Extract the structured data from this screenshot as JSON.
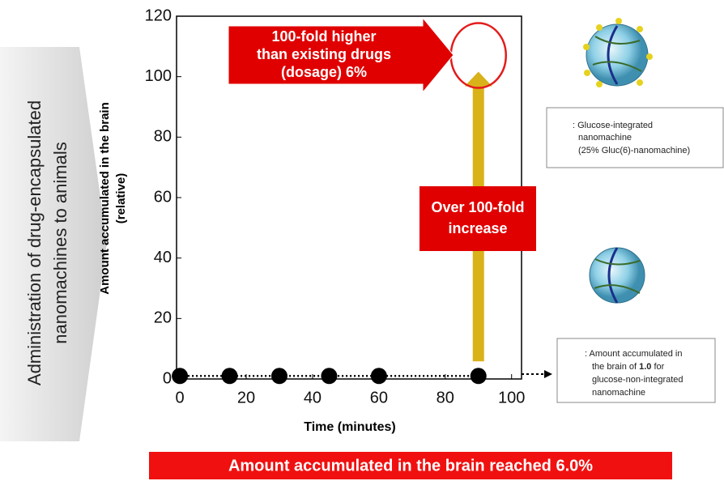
{
  "chart_data": {
    "type": "scatter",
    "xlabel": "Time (minutes)",
    "ylabel": [
      "Amount accumulated in the brain",
      "(relative)"
    ],
    "xlim": [
      -1,
      103
    ],
    "ylim": [
      0,
      120
    ],
    "xticks": [
      0,
      20,
      40,
      60,
      80,
      100
    ],
    "yticks": [
      0,
      20,
      40,
      60,
      80,
      100,
      120
    ],
    "series": [
      {
        "color": "#000000",
        "x": [
          0,
          15,
          30,
          45,
          60,
          90
        ],
        "values": [
          1,
          1,
          1,
          1,
          1,
          1
        ]
      },
      {
        "color": "#e41b1b",
        "x": [
          90
        ],
        "values": [
          107
        ]
      }
    ],
    "annotations": {
      "higher": [
        "100-fold higher",
        "than existing drugs",
        "(dosage) 6%"
      ],
      "increase": [
        "Over 100-fold",
        "increase"
      ],
      "banner": "Amount accumulated in the brain reached 6.0%",
      "side": [
        "Administration of drug-encapsulated",
        "nanomachines to animals"
      ]
    },
    "legend_boxes": [
      {
        "lines": [
          ": Glucose-integrated",
          "nanomachine",
          "(25% Gluc(6)-nanomachine)"
        ]
      },
      {
        "lines": [
          ": Amount accumulated in",
          "the brain of ",
          "1.0",
          " for",
          "glucose-non-integrated",
          "nanomachine"
        ]
      }
    ]
  }
}
